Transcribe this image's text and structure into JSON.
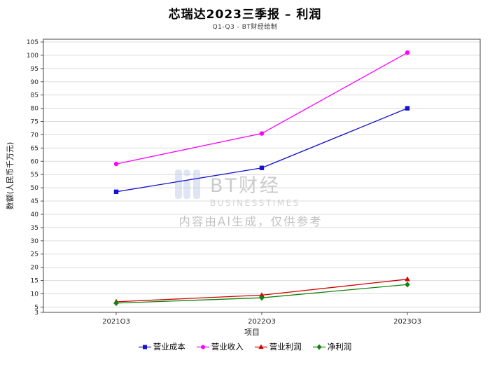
{
  "chart_data": {
    "type": "line",
    "title": "芯瑞达2023三季报 – 利润",
    "subtitle": "Q1-Q3 - BT财经绘制",
    "xlabel": "项目",
    "ylabel": "数额(人民币千万元)",
    "categories": [
      "2021Q3",
      "2022Q3",
      "2023Q3"
    ],
    "y_min": 3,
    "y_max": 105,
    "y_ticks": [
      3,
      5,
      10,
      15,
      20,
      25,
      30,
      35,
      40,
      45,
      50,
      55,
      60,
      65,
      70,
      75,
      80,
      85,
      90,
      95,
      100,
      105
    ],
    "grid": "horizontal",
    "legend_position": "bottom",
    "series": [
      {
        "name": "营业成本",
        "color": "#1414cc",
        "marker": "square",
        "values": [
          48.5,
          57.5,
          80
        ]
      },
      {
        "name": "营业收入",
        "color": "#ff00ff",
        "marker": "circle",
        "values": [
          59,
          70.5,
          101
        ]
      },
      {
        "name": "营业利润",
        "color": "#d40000",
        "marker": "triangle",
        "values": [
          7,
          9.5,
          15.5
        ]
      },
      {
        "name": "净利润",
        "color": "#0f840f",
        "marker": "diamond",
        "values": [
          6.5,
          8.5,
          13.5
        ]
      }
    ],
    "watermark": {
      "brand": "BT财经",
      "brand_sub": "BUSINESSTIMES",
      "note": "内容由AI生成，仅供参考"
    }
  }
}
